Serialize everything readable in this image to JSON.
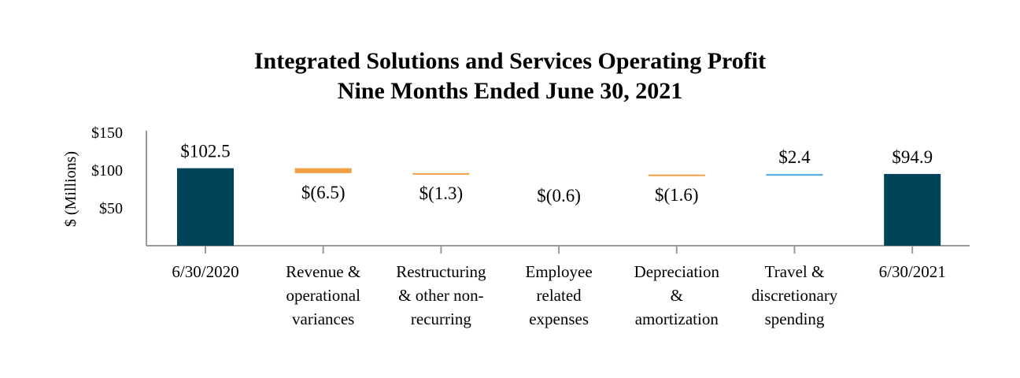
{
  "chart_data": {
    "type": "waterfall",
    "title": "Integrated Solutions and Services Operating Profit",
    "subtitle": "Nine Months Ended June 30, 2021",
    "ylabel": "$ (Millions)",
    "yticks": [
      "$50",
      "$100",
      "$150"
    ],
    "ytick_values": [
      50,
      100,
      150
    ],
    "ylim": [
      0,
      150
    ],
    "grid": false,
    "categories": [
      [
        "6/30/2020"
      ],
      [
        "Revenue &",
        "operational",
        "variances"
      ],
      [
        "Restructuring",
        "& other non-",
        "recurring"
      ],
      [
        "Employee",
        "related",
        "expenses"
      ],
      [
        "Depreciation",
        "&",
        "amortization"
      ],
      [
        "Travel &",
        "discretionary",
        "spending"
      ],
      [
        "6/30/2021"
      ]
    ],
    "steps": [
      {
        "kind": "total",
        "value": 102.5,
        "label": "$102.5"
      },
      {
        "kind": "delta",
        "value": -6.5,
        "label": "$(6.5)"
      },
      {
        "kind": "delta",
        "value": -1.3,
        "label": "$(1.3)"
      },
      {
        "kind": "delta",
        "value": -0.6,
        "label": "$(0.6)"
      },
      {
        "kind": "delta",
        "value": -1.6,
        "label": "$(1.6)"
      },
      {
        "kind": "delta",
        "value": 2.4,
        "label": "$2.4"
      },
      {
        "kind": "total",
        "value": 94.9,
        "label": "$94.9"
      }
    ],
    "colors": {
      "total": "#00445a",
      "decrease": "#f0a043",
      "increase": "#5aafe0",
      "axis": "#999999"
    }
  }
}
